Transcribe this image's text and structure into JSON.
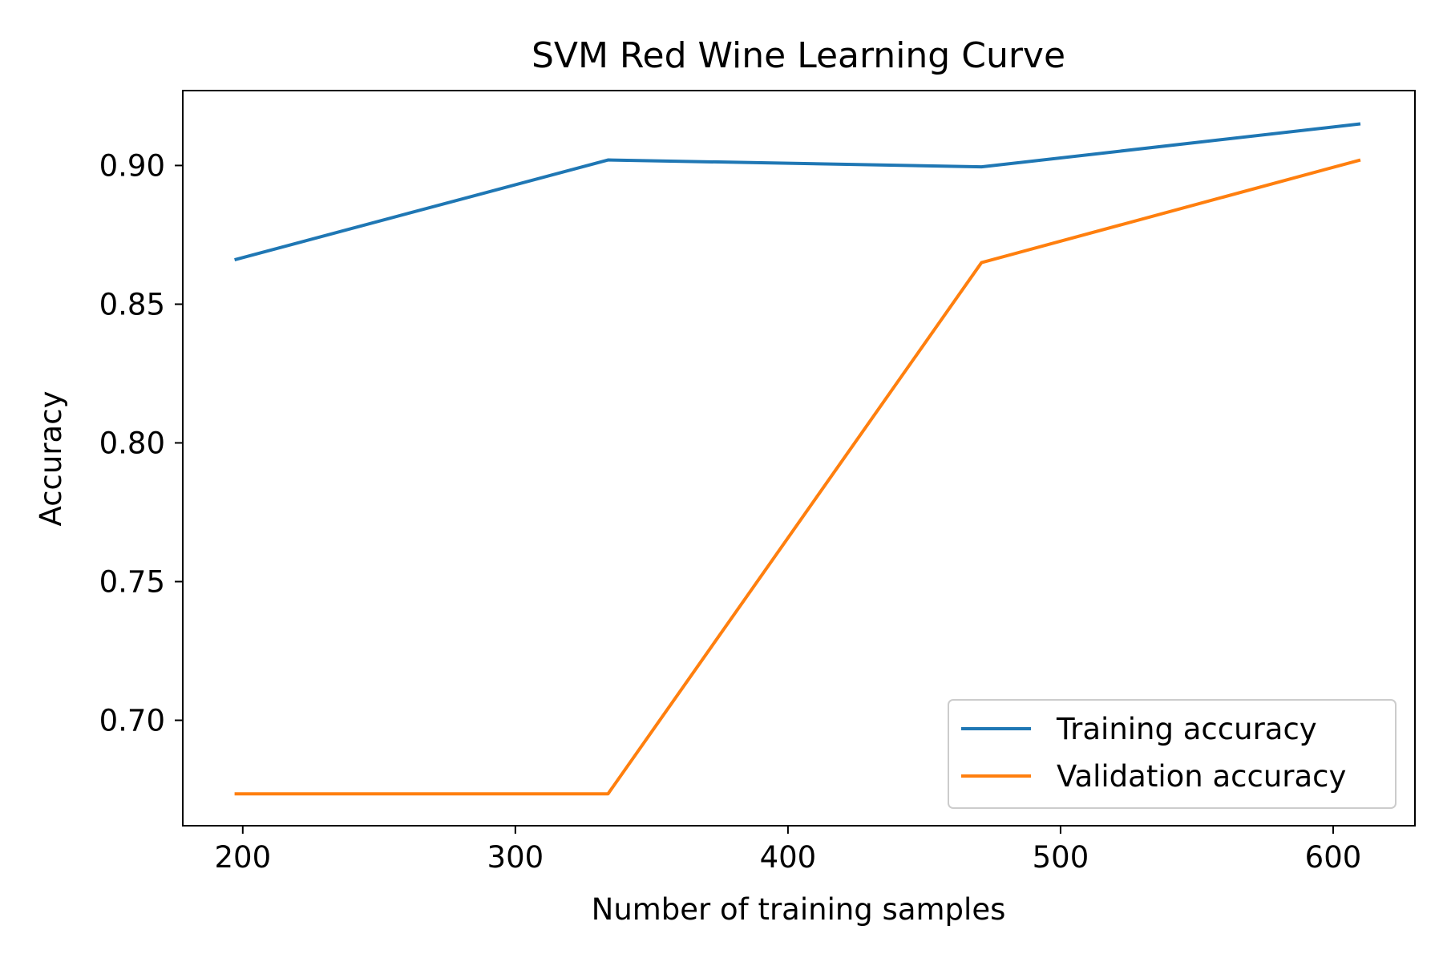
{
  "chart_data": {
    "type": "line",
    "title": "SVM Red Wine Learning Curve",
    "xlabel": "Number of training samples",
    "ylabel": "Accuracy",
    "xlim": [
      178,
      630
    ],
    "ylim": [
      0.662,
      0.927
    ],
    "xticks": [
      200,
      300,
      400,
      500,
      600
    ],
    "xtick_labels": [
      "200",
      "300",
      "400",
      "500",
      "600"
    ],
    "yticks": [
      0.7,
      0.75,
      0.8,
      0.85,
      0.9
    ],
    "ytick_labels": [
      "0.70",
      "0.75",
      "0.80",
      "0.85",
      "0.90"
    ],
    "grid": false,
    "legend_position": "lower-right",
    "x": [
      197,
      334,
      471,
      610
    ],
    "series": [
      {
        "name": "Training accuracy",
        "color": "#1f77b4",
        "values": [
          0.866,
          0.902,
          0.8995,
          0.915
        ]
      },
      {
        "name": "Validation accuracy",
        "color": "#ff7f0e",
        "values": [
          0.6735,
          0.6735,
          0.865,
          0.902
        ]
      }
    ]
  }
}
